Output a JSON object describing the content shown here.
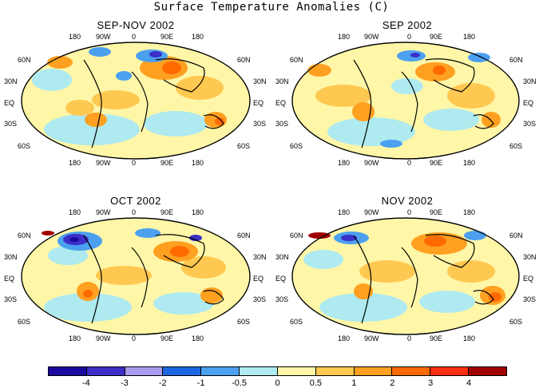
{
  "title": "Surface Temperature Anomalies (C)",
  "panels": [
    {
      "title": "SEP-NOV 2002"
    },
    {
      "title": "SEP 2002"
    },
    {
      "title": "OCT 2002"
    },
    {
      "title": "NOV 2002"
    }
  ],
  "axis_labels": {
    "lon": [
      "180",
      "90W",
      "0",
      "90E",
      "180"
    ],
    "lat": [
      "60N",
      "30N",
      "EQ",
      "30S",
      "60S"
    ]
  },
  "colorbar": {
    "colors": [
      "#1a0aa0",
      "#3b2fc8",
      "#a89cf0",
      "#1e66e0",
      "#4ca0f0",
      "#aeeaf0",
      "#fff6a8",
      "#ffc850",
      "#ffa020",
      "#ff6a00",
      "#ff3010",
      "#a00000"
    ],
    "tick_labels": [
      "-4",
      "-3",
      "-2",
      "-1",
      "-0.5",
      "0",
      "0.5",
      "1",
      "2",
      "3",
      "4"
    ]
  }
}
